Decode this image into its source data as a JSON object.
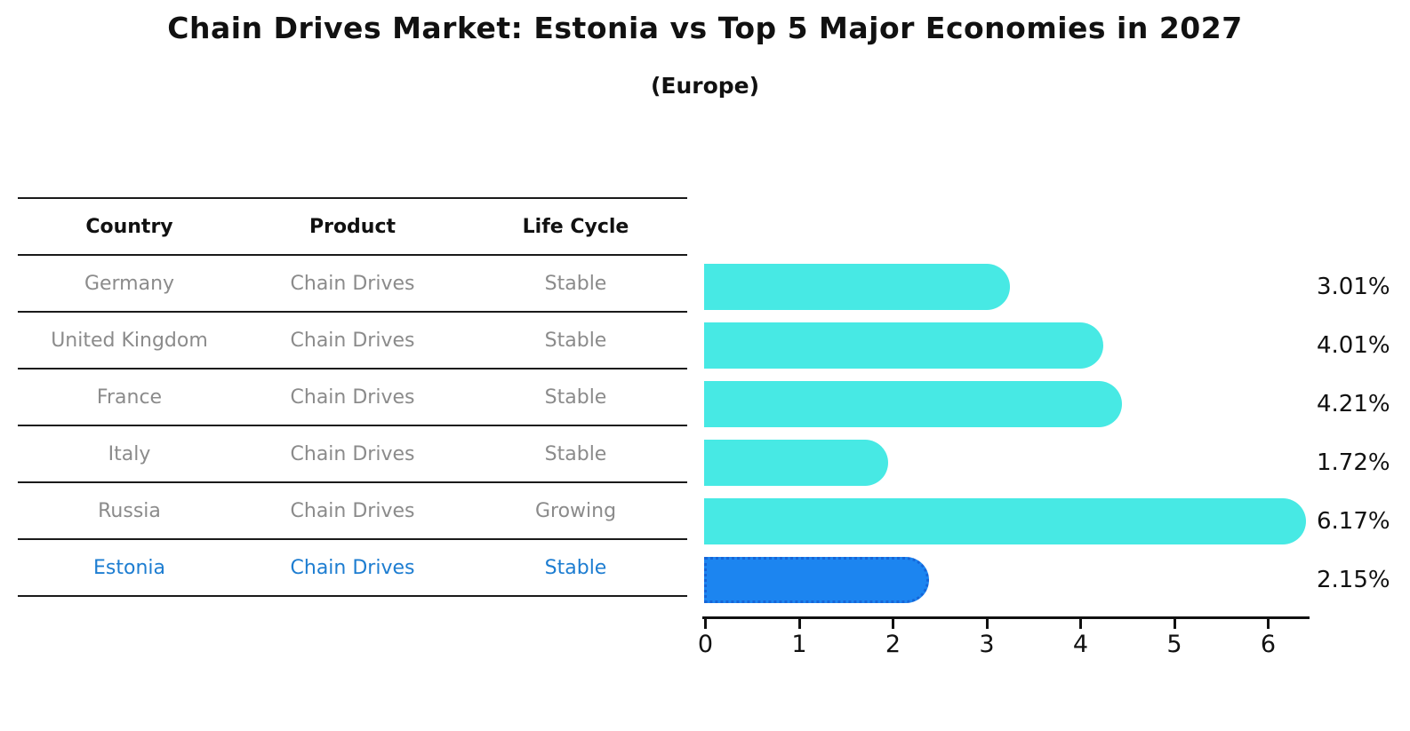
{
  "header": {
    "title": "Chain Drives Market: Estonia vs Top 5 Major Economies in 2027",
    "subtitle": "(Europe)"
  },
  "table": {
    "headers": [
      "Country",
      "Product",
      "Life Cycle"
    ]
  },
  "chart_data": {
    "type": "bar",
    "orientation": "horizontal",
    "title": "Chain Drives Market: Estonia vs Top 5 Major Economies in 2027",
    "subtitle": "(Europe)",
    "xlabel": "",
    "ylabel": "",
    "xlim": [
      0,
      6.5
    ],
    "x_ticks": [
      0,
      1,
      2,
      3,
      4,
      5,
      6
    ],
    "grid": false,
    "legend": false,
    "categories": [
      "Germany",
      "United Kingdom",
      "France",
      "Italy",
      "Russia",
      "Estonia"
    ],
    "values": [
      3.01,
      4.01,
      4.21,
      1.72,
      6.17,
      2.15
    ],
    "rows": [
      {
        "country": "Germany",
        "product": "Chain Drives",
        "life_cycle": "Stable",
        "value": 3.01,
        "label": "3.01%",
        "highlight": false
      },
      {
        "country": "United Kingdom",
        "product": "Chain Drives",
        "life_cycle": "Stable",
        "value": 4.01,
        "label": "4.01%",
        "highlight": false
      },
      {
        "country": "France",
        "product": "Chain Drives",
        "life_cycle": "Stable",
        "value": 4.21,
        "label": "4.21%",
        "highlight": false
      },
      {
        "country": "Italy",
        "product": "Chain Drives",
        "life_cycle": "Stable",
        "value": 1.72,
        "label": "1.72%",
        "highlight": false
      },
      {
        "country": "Russia",
        "product": "Chain Drives",
        "life_cycle": "Growing",
        "value": 6.17,
        "label": "6.17%",
        "highlight": false
      },
      {
        "country": "Estonia",
        "product": "Chain Drives",
        "life_cycle": "Stable",
        "value": 2.15,
        "label": "2.15%",
        "highlight": true
      }
    ],
    "colors": {
      "bar": "#47e9e4",
      "highlight_bar": "#1c85f0",
      "highlight_border": "#1565d8",
      "highlight_text": "#1d7dd1",
      "row_text": "#8b8b8b",
      "header_text": "#111111",
      "axis": "#111111"
    }
  }
}
